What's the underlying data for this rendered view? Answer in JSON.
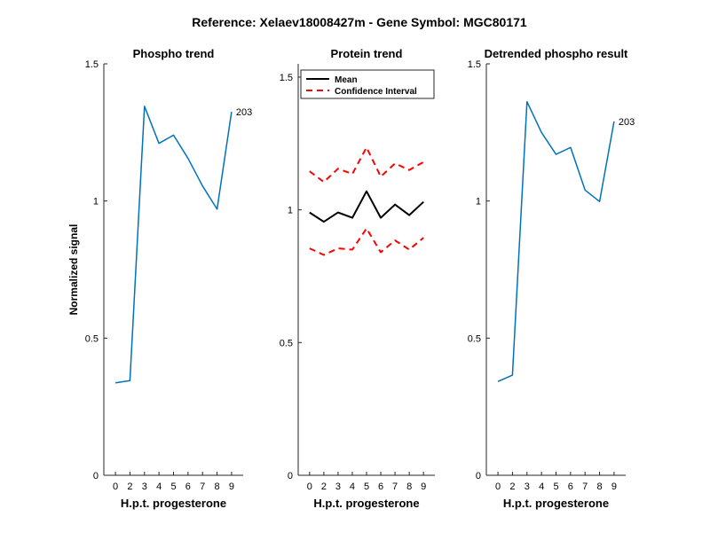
{
  "figure_title": "Reference:  Xelaev18008427m - Gene Symbol:  MGC80171",
  "chart_data": [
    {
      "type": "line",
      "title": "Phospho trend",
      "xlabel": "H.p.t. progesterone",
      "ylabel": "Normalized signal",
      "x": [
        0,
        2,
        3,
        4,
        5,
        6,
        7,
        8,
        9
      ],
      "xticks": [
        "0",
        "2",
        "3",
        "4",
        "5",
        "6",
        "7",
        "8",
        "9"
      ],
      "ylim": [
        0,
        1.5
      ],
      "yticks": [
        0,
        0.5,
        1,
        1.5
      ],
      "ytick_labels": [
        "0",
        "0.5",
        "1",
        "1.5"
      ],
      "series": [
        {
          "values": [
            0.337,
            0.345,
            1.345,
            1.21,
            1.24,
            1.155,
            1.055,
            0.97,
            1.325
          ],
          "color": "#0072BD",
          "style": "solid"
        }
      ],
      "end_label": "203",
      "grid": false
    },
    {
      "type": "line",
      "title": "Protein trend",
      "xlabel": "H.p.t. progesterone",
      "ylabel": "",
      "x": [
        0,
        2,
        3,
        4,
        5,
        6,
        7,
        8,
        9
      ],
      "xticks": [
        "0",
        "2",
        "3",
        "4",
        "5",
        "6",
        "7",
        "8",
        "9"
      ],
      "ylim": [
        0,
        1.55
      ],
      "yticks": [
        0,
        0.5,
        1,
        1.5
      ],
      "ytick_labels": [
        "0",
        "0.5",
        "1",
        "1.5"
      ],
      "series": [
        {
          "name": "Mean",
          "values": [
            0.99,
            0.955,
            0.99,
            0.97,
            1.07,
            0.97,
            1.02,
            0.98,
            1.03
          ],
          "color": "#000000",
          "style": "solid"
        },
        {
          "name": "Confidence Interval",
          "values": [
            1.145,
            1.105,
            1.155,
            1.135,
            1.235,
            1.125,
            1.175,
            1.15,
            1.18
          ],
          "color": "#FF0000",
          "style": "dashed"
        },
        {
          "values": [
            0.855,
            0.83,
            0.855,
            0.85,
            0.93,
            0.84,
            0.885,
            0.85,
            0.895
          ],
          "color": "#FF0000",
          "style": "dashed"
        }
      ],
      "legend": {
        "position": "top",
        "entries": [
          "Mean",
          "Confidence Interval"
        ]
      },
      "grid": false
    },
    {
      "type": "line",
      "title": "Detrended phospho result",
      "xlabel": "H.p.t. progesterone",
      "ylabel": "",
      "x": [
        0,
        2,
        3,
        4,
        5,
        6,
        7,
        8,
        9
      ],
      "xticks": [
        "0",
        "2",
        "3",
        "4",
        "5",
        "6",
        "7",
        "8",
        "9"
      ],
      "ylim": [
        0,
        1.5
      ],
      "yticks": [
        0,
        0.5,
        1,
        1.5
      ],
      "ytick_labels": [
        "0",
        "0.5",
        "1",
        "1.5"
      ],
      "series": [
        {
          "values": [
            0.342,
            0.365,
            1.362,
            1.25,
            1.17,
            1.195,
            1.04,
            0.998,
            1.29
          ],
          "color": "#0072BD",
          "style": "solid"
        }
      ],
      "end_label": "203",
      "grid": false
    }
  ]
}
